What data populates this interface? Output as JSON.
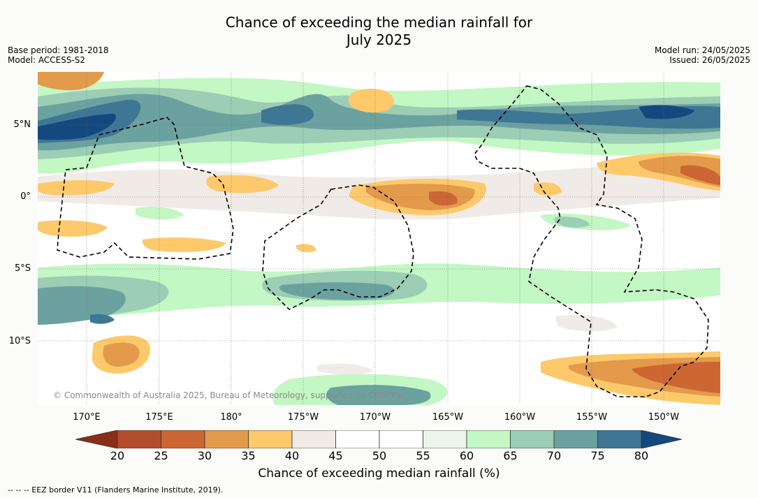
{
  "header": {
    "title_line1": "Chance of exceeding the median rainfall for",
    "title_line2": "July 2025",
    "base_period": "Base period: 1981-2018",
    "model": "Model: ACCESS-S2",
    "model_run": "Model run: 24/05/2025",
    "issued": "Issued: 26/05/2025"
  },
  "map": {
    "copyright": "© Commonwealth of Australia 2025, Bureau of Meteorology, supported by COSPPac",
    "lat_labels": [
      "5°N",
      "0°",
      "5°S",
      "10°S"
    ],
    "lon_labels": [
      "170°E",
      "175°E",
      "180°",
      "175°W",
      "170°W",
      "165°W",
      "160°W",
      "155°W",
      "150°W"
    ],
    "palette": {
      "20": "#8c2d17",
      "25": "#b34c2a",
      "30": "#cc6633",
      "35": "#e39a4b",
      "40": "#fec96b",
      "45": "#f1ebe7",
      "50": "#ffffff",
      "55": "#ffffff",
      "60": "#ebf5ea",
      "65": "#c3f7c4",
      "70": "#9ccdb5",
      "75": "#6ba2a0",
      "80": "#3e7694",
      "85": "#14497f"
    }
  },
  "colorbar": {
    "ticks": [
      "20",
      "25",
      "30",
      "35",
      "40",
      "45",
      "50",
      "55",
      "60",
      "65",
      "70",
      "75",
      "80"
    ],
    "title": "Chance of exceeding median rainfall (%)",
    "colors": [
      "#b34c2a",
      "#cc6633",
      "#e39a4b",
      "#fec96b",
      "#f1ebe7",
      "#ffffff",
      "#ffffff",
      "#ebf5ea",
      "#c3f7c4",
      "#9ccdb5",
      "#6ba2a0",
      "#3e7694"
    ],
    "low_color": "#8c2d17",
    "high_color": "#14497f"
  },
  "footnote": "-- -- -- EEZ border V11 (Flanders Marine Institute, 2019)."
}
